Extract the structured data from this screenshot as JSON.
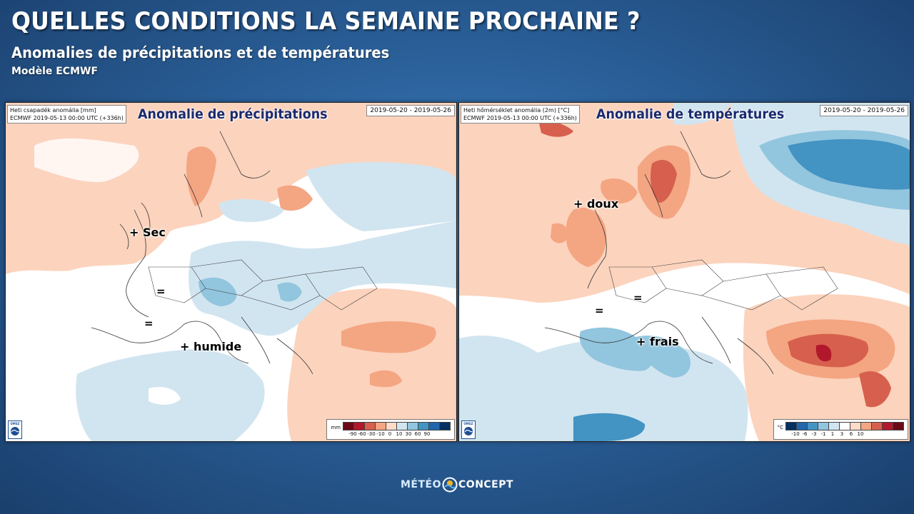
{
  "header": {
    "title": "QUELLES CONDITIONS LA SEMAINE PROCHAINE ?",
    "subtitle": "Anomalies de précipitations et de températures",
    "model": "Modèle ECMWF"
  },
  "panels": [
    {
      "id": "precip",
      "title": "Anomalie de précipitations",
      "info_line1": "Heti csapadék anomália [mm]",
      "info_line2": "ECMWF 2019-05-13 00:00 UTC (+336h)",
      "dates": "2019-05-20 - 2019-05-26",
      "annotations": [
        "+ Sec",
        "=",
        "=",
        "+ humide"
      ],
      "legend": {
        "unit": "mm",
        "ticks": [
          "-90",
          "-60",
          "-30",
          "-10",
          "0",
          "10",
          "30",
          "60",
          "90"
        ],
        "colors": [
          "#6b0a16",
          "#b2182b",
          "#d6604d",
          "#f4a582",
          "#fddbc7",
          "#d1e5f0",
          "#92c5de",
          "#4393c3",
          "#2166ac",
          "#053061"
        ]
      }
    },
    {
      "id": "temp",
      "title": "Anomalie de températures",
      "info_line1": "Heti hőmérséklet anomália (2m) [°C]",
      "info_line2": "ECMWF 2019-05-13 00:00 UTC (+336h)",
      "dates": "2019-05-20 - 2019-05-26",
      "annotations": [
        "+ doux",
        "=",
        "=",
        "+ frais"
      ],
      "legend": {
        "unit": "°C",
        "ticks": [
          "-10",
          "-6",
          "-3",
          "-1",
          "1",
          "3",
          "6",
          "10"
        ],
        "colors": [
          "#053061",
          "#2166ac",
          "#4393c3",
          "#92c5de",
          "#d1e5f0",
          "#ffffff",
          "#fddbc7",
          "#f4a582",
          "#d6604d",
          "#b2182b",
          "#6b0a16"
        ]
      }
    }
  ],
  "logo_label": "OMSZ",
  "brand": {
    "part1": "MÉTÉO",
    "part2": "CONCEPT"
  }
}
